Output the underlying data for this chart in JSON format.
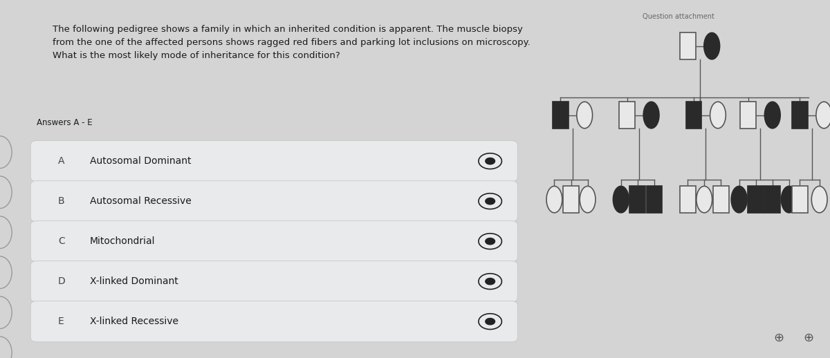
{
  "bg_color": "#d4d4d4",
  "question_text": "The following pedigree shows a family in which an inherited condition is apparent. The muscle biopsy\nfrom the one of the affected persons shows ragged red fibers and parking lot inclusions on microscopy.\nWhat is the most likely mode of inheritance for this condition?",
  "answers_label": "Answers A - E",
  "answers": [
    {
      "letter": "A",
      "text": "Autosomal Dominant"
    },
    {
      "letter": "B",
      "text": "Autosomal Recessive"
    },
    {
      "letter": "C",
      "text": "Mitochondrial"
    },
    {
      "letter": "D",
      "text": "X-linked Dominant"
    },
    {
      "letter": "E",
      "text": "X-linked Recessive"
    }
  ],
  "answer_box_color": "#e8eaec",
  "answer_box_border": "#c0c2c4",
  "text_color": "#1a1a1a",
  "letter_color": "#444444",
  "pedigree_panel_color": "#e0e0e0",
  "filled_color": "#2a2a2a",
  "unfilled_color": "#e8e8e8",
  "unfilled_stroke": "#555555",
  "eye_icon_color": "#222222",
  "line_color": "#555555"
}
